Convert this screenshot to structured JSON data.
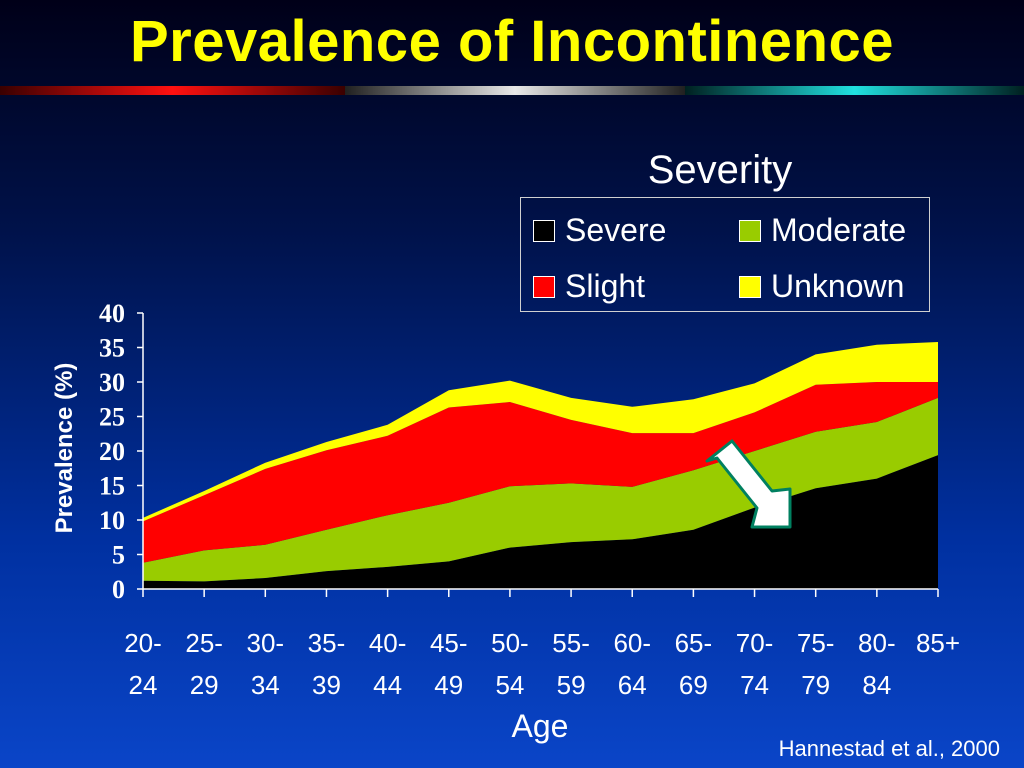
{
  "slide": {
    "title": "Prevalence of Incontinence",
    "citation": "Hannestad et al., 2000"
  },
  "colors": {
    "title": "#ffff00",
    "severe": "#000000",
    "moderate": "#99cc00",
    "slight": "#ff0000",
    "unknown": "#ffff00",
    "arrow_fill": "#ffffff",
    "arrow_stroke": "#008060"
  },
  "arrow_icon": "down-right-arrow-icon",
  "chart_data": {
    "type": "area",
    "stacked": true,
    "legend_title": "Severity",
    "ylabel": "Prevalence (%)",
    "xlabel": "Age",
    "ylim": [
      0,
      40
    ],
    "yticks": [
      0,
      5,
      10,
      15,
      20,
      25,
      30,
      35,
      40
    ],
    "categories": [
      "20-24",
      "25-29",
      "30-34",
      "35-39",
      "40-44",
      "45-49",
      "50-54",
      "55-59",
      "60-64",
      "65-69",
      "70-74",
      "75-79",
      "80-84",
      "85+"
    ],
    "category_lines": [
      [
        "20-",
        "24"
      ],
      [
        "25-",
        "29"
      ],
      [
        "30-",
        "34"
      ],
      [
        "35-",
        "39"
      ],
      [
        "40-",
        "44"
      ],
      [
        "45-",
        "49"
      ],
      [
        "50-",
        "54"
      ],
      [
        "55-",
        "59"
      ],
      [
        "60-",
        "64"
      ],
      [
        "65-",
        "69"
      ],
      [
        "70-",
        "74"
      ],
      [
        "75-",
        "79"
      ],
      [
        "80-",
        "84"
      ],
      [
        "85+",
        ""
      ]
    ],
    "series": [
      {
        "name": "Severe",
        "color": "#000000",
        "values": [
          1.2,
          1.1,
          1.6,
          2.6,
          3.2,
          4.0,
          6.0,
          6.8,
          7.2,
          8.6,
          11.8,
          14.6,
          16.0,
          19.4
        ]
      },
      {
        "name": "Moderate",
        "color": "#99cc00",
        "values": [
          2.6,
          4.5,
          4.8,
          6.0,
          7.5,
          8.5,
          8.9,
          8.5,
          7.6,
          8.6,
          8.2,
          8.2,
          8.2,
          8.3
        ]
      },
      {
        "name": "Slight",
        "color": "#ff0000",
        "values": [
          6.0,
          8.0,
          11.0,
          11.5,
          11.5,
          13.8,
          12.2,
          9.2,
          7.8,
          5.4,
          5.6,
          6.8,
          5.8,
          2.3
        ]
      },
      {
        "name": "Unknown",
        "color": "#ffff00",
        "values": [
          0.5,
          0.6,
          0.9,
          1.2,
          1.6,
          2.5,
          3.1,
          3.2,
          3.8,
          4.9,
          4.2,
          4.4,
          5.4,
          5.8
        ]
      }
    ],
    "legend_order": [
      "Severe",
      "Moderate",
      "Slight",
      "Unknown"
    ],
    "legend_placement": "top-right",
    "grid": false
  }
}
